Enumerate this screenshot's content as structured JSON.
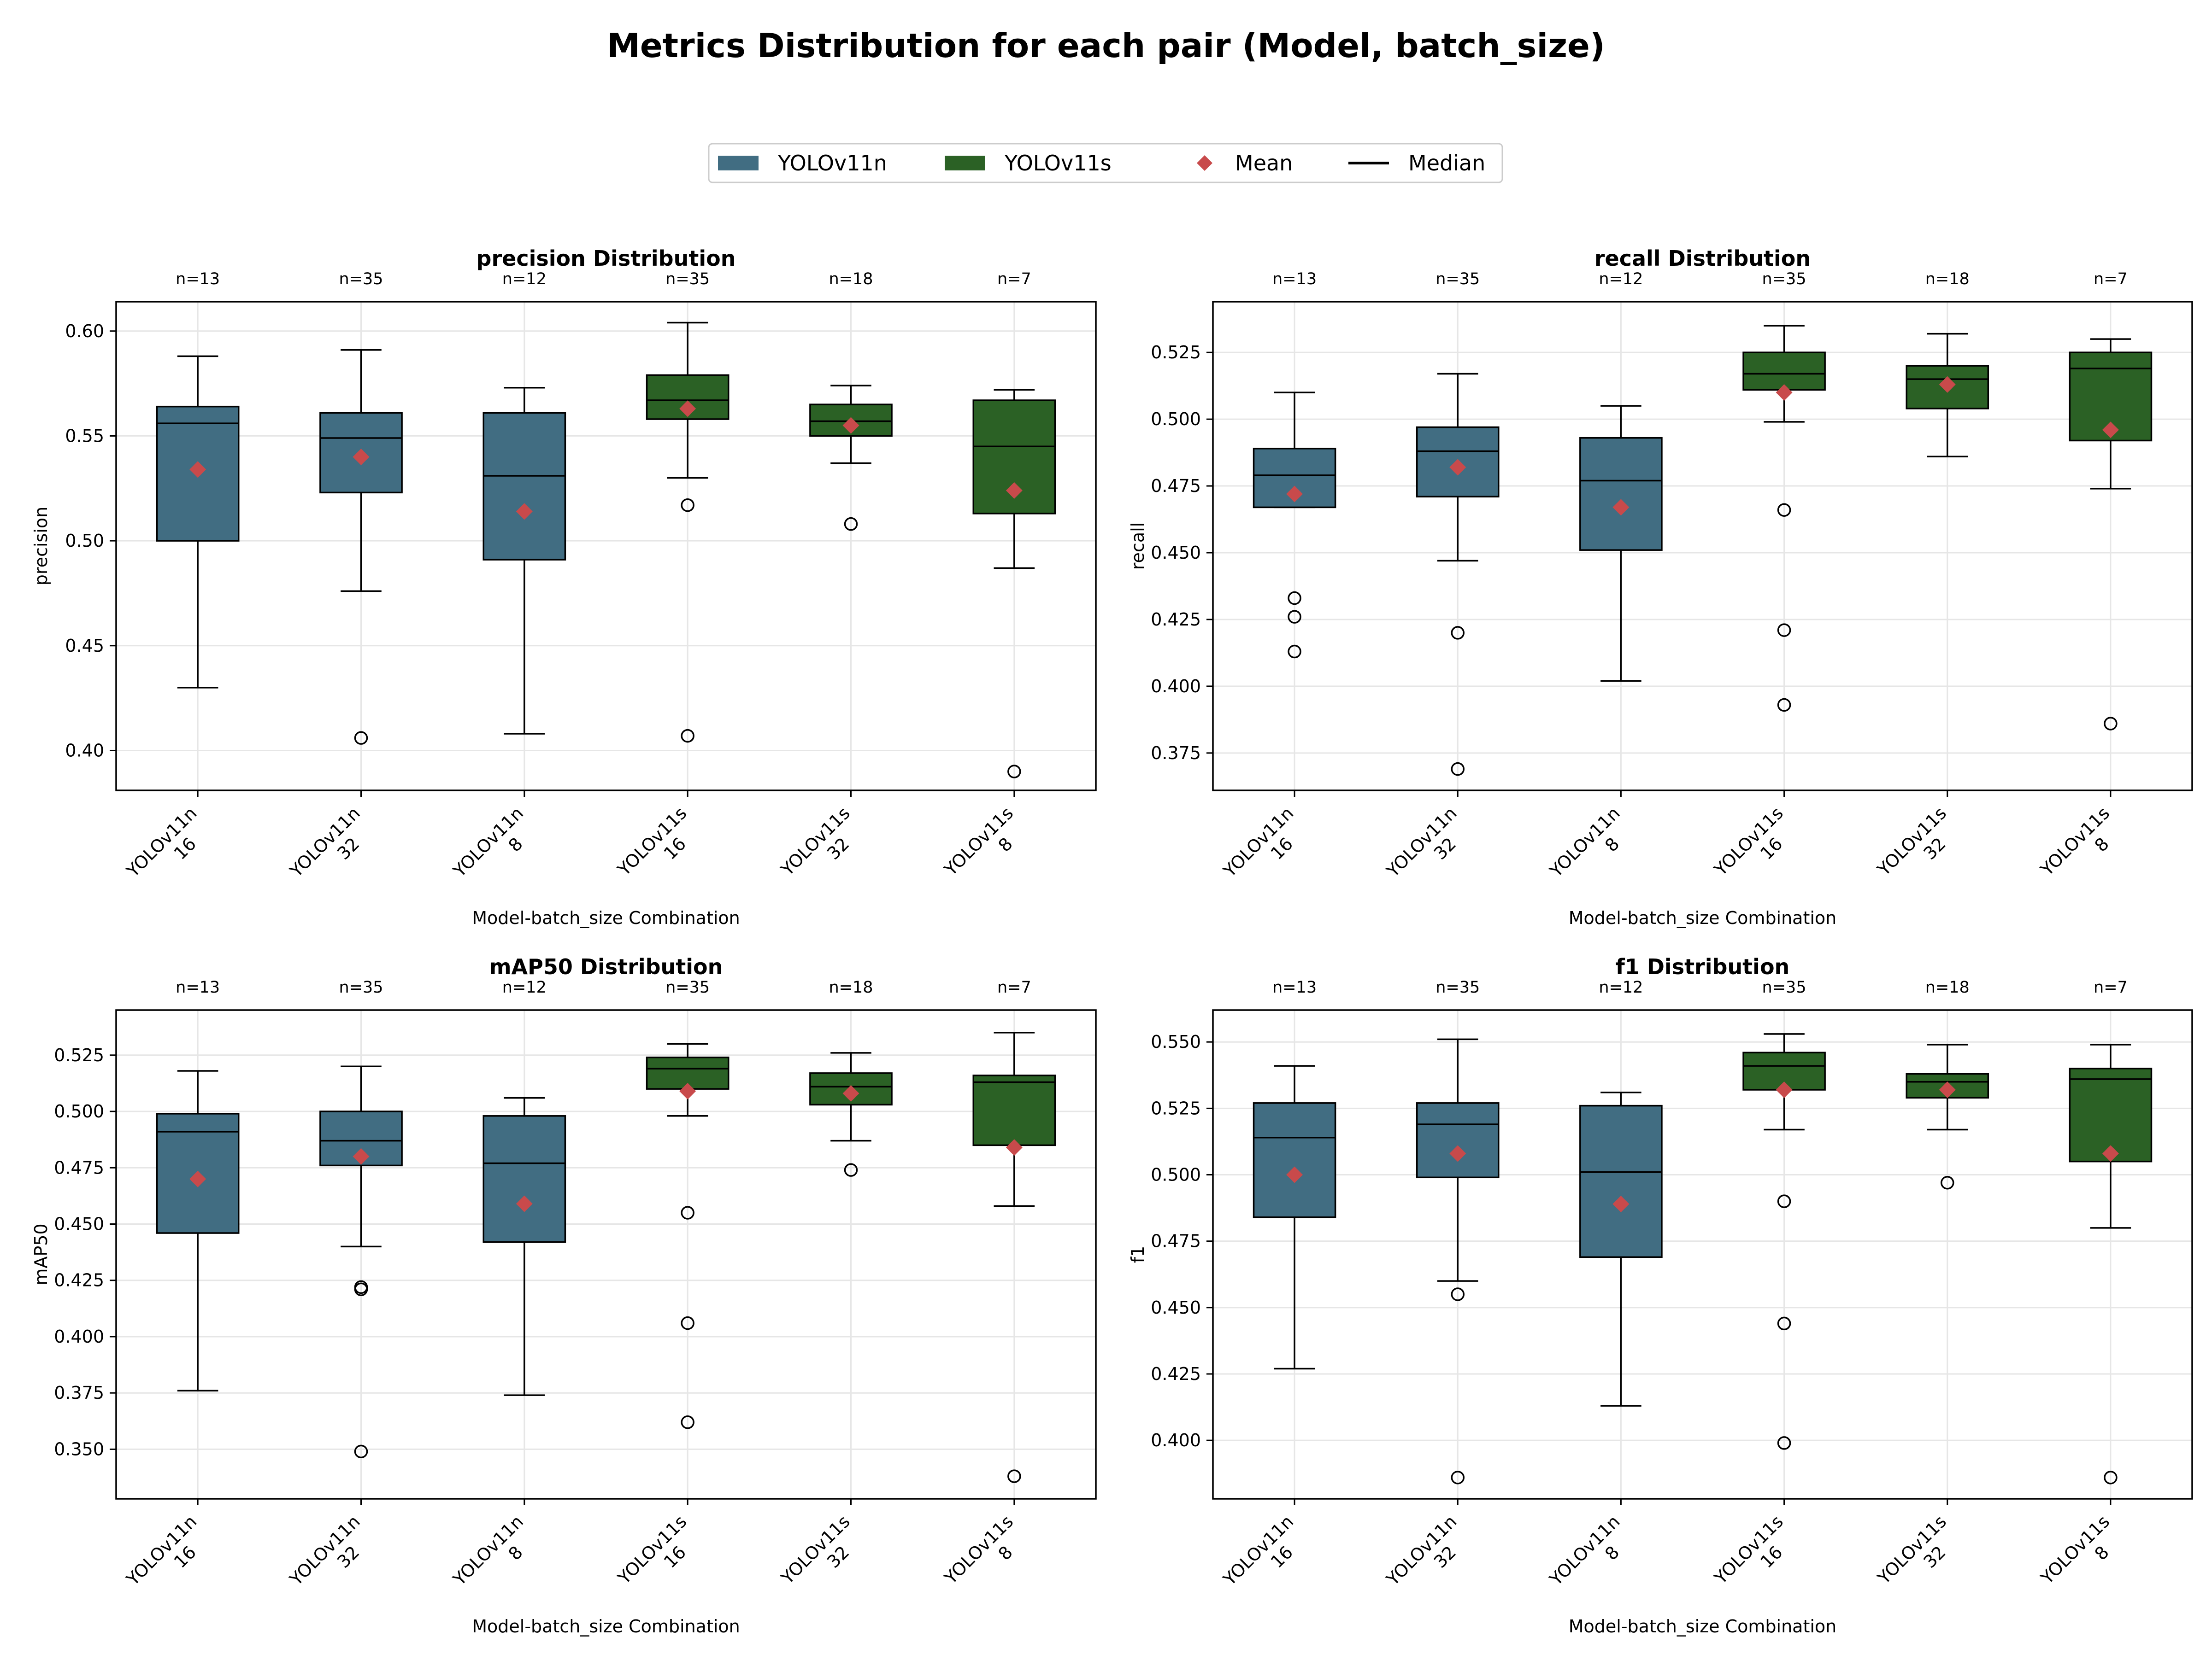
{
  "figure_title": "Metrics Distribution for each pair (Model, batch_size)",
  "legend": {
    "items": [
      {
        "label": "YOLOv11n",
        "kind": "patch",
        "color": "#416d82"
      },
      {
        "label": "YOLOv11s",
        "kind": "patch",
        "color": "#2b6125"
      },
      {
        "label": "Mean",
        "kind": "diamond",
        "color": "#c84a4b"
      },
      {
        "label": "Median",
        "kind": "line",
        "color": "#000000"
      }
    ]
  },
  "colors": {
    "YOLOv11n": "#416d82",
    "YOLOv11s": "#2b6125",
    "mean": "#c84a4b",
    "median": "#000000",
    "grid": "#e6e6e6"
  },
  "chart_data": [
    {
      "type": "box",
      "title": "precision Distribution",
      "xlabel": "Model-batch_size Combination",
      "ylabel": "precision",
      "ylim": [
        0.381,
        0.614
      ],
      "yticks": [
        "0.40",
        "0.45",
        "0.50",
        "0.55",
        "0.60"
      ],
      "grid": true,
      "categories": [
        {
          "model": "YOLOv11n",
          "batch": "16",
          "n": "n=13",
          "whislo": 0.43,
          "q1": 0.5,
          "median": 0.556,
          "q3": 0.564,
          "whishi": 0.588,
          "mean": 0.534,
          "fliers": []
        },
        {
          "model": "YOLOv11n",
          "batch": "32",
          "n": "n=35",
          "whislo": 0.476,
          "q1": 0.523,
          "median": 0.549,
          "q3": 0.561,
          "whishi": 0.591,
          "mean": 0.54,
          "fliers": [
            0.406
          ]
        },
        {
          "model": "YOLOv11n",
          "batch": "8",
          "n": "n=12",
          "whislo": 0.408,
          "q1": 0.491,
          "median": 0.531,
          "q3": 0.561,
          "whishi": 0.573,
          "mean": 0.514,
          "fliers": []
        },
        {
          "model": "YOLOv11s",
          "batch": "16",
          "n": "n=35",
          "whislo": 0.53,
          "q1": 0.558,
          "median": 0.567,
          "q3": 0.579,
          "whishi": 0.604,
          "mean": 0.563,
          "fliers": [
            0.517,
            0.407
          ]
        },
        {
          "model": "YOLOv11s",
          "batch": "32",
          "n": "n=18",
          "whislo": 0.537,
          "q1": 0.55,
          "median": 0.557,
          "q3": 0.565,
          "whishi": 0.574,
          "mean": 0.555,
          "fliers": [
            0.508
          ]
        },
        {
          "model": "YOLOv11s",
          "batch": "8",
          "n": "n=7",
          "whislo": 0.487,
          "q1": 0.513,
          "median": 0.545,
          "q3": 0.567,
          "whishi": 0.572,
          "mean": 0.524,
          "fliers": [
            0.39
          ]
        }
      ]
    },
    {
      "type": "box",
      "title": "recall Distribution",
      "xlabel": "Model-batch_size Combination",
      "ylabel": "recall",
      "ylim": [
        0.361,
        0.544
      ],
      "yticks": [
        "0.375",
        "0.400",
        "0.425",
        "0.450",
        "0.475",
        "0.500",
        "0.525"
      ],
      "grid": true,
      "categories": [
        {
          "model": "YOLOv11n",
          "batch": "16",
          "n": "n=13",
          "whislo": 0.467,
          "q1": 0.467,
          "median": 0.479,
          "q3": 0.489,
          "whishi": 0.51,
          "mean": 0.472,
          "fliers": [
            0.433,
            0.426,
            0.413
          ]
        },
        {
          "model": "YOLOv11n",
          "batch": "32",
          "n": "n=35",
          "whislo": 0.447,
          "q1": 0.471,
          "median": 0.488,
          "q3": 0.497,
          "whishi": 0.517,
          "mean": 0.482,
          "fliers": [
            0.42,
            0.369
          ]
        },
        {
          "model": "YOLOv11n",
          "batch": "8",
          "n": "n=12",
          "whislo": 0.402,
          "q1": 0.451,
          "median": 0.477,
          "q3": 0.493,
          "whishi": 0.505,
          "mean": 0.467,
          "fliers": []
        },
        {
          "model": "YOLOv11s",
          "batch": "16",
          "n": "n=35",
          "whislo": 0.499,
          "q1": 0.511,
          "median": 0.517,
          "q3": 0.525,
          "whishi": 0.535,
          "mean": 0.51,
          "fliers": [
            0.466,
            0.421,
            0.393
          ]
        },
        {
          "model": "YOLOv11s",
          "batch": "32",
          "n": "n=18",
          "whislo": 0.486,
          "q1": 0.504,
          "median": 0.515,
          "q3": 0.52,
          "whishi": 0.532,
          "mean": 0.513,
          "fliers": []
        },
        {
          "model": "YOLOv11s",
          "batch": "8",
          "n": "n=7",
          "whislo": 0.474,
          "q1": 0.492,
          "median": 0.519,
          "q3": 0.525,
          "whishi": 0.53,
          "mean": 0.496,
          "fliers": [
            0.386
          ]
        }
      ]
    },
    {
      "type": "box",
      "title": "mAP50 Distribution",
      "xlabel": "Model-batch_size Combination",
      "ylabel": "mAP50",
      "ylim": [
        0.328,
        0.545
      ],
      "yticks": [
        "0.350",
        "0.375",
        "0.400",
        "0.425",
        "0.450",
        "0.475",
        "0.500",
        "0.525"
      ],
      "grid": true,
      "categories": [
        {
          "model": "YOLOv11n",
          "batch": "16",
          "n": "n=13",
          "whislo": 0.376,
          "q1": 0.446,
          "median": 0.491,
          "q3": 0.499,
          "whishi": 0.518,
          "mean": 0.47,
          "fliers": []
        },
        {
          "model": "YOLOv11n",
          "batch": "32",
          "n": "n=35",
          "whislo": 0.44,
          "q1": 0.476,
          "median": 0.487,
          "q3": 0.5,
          "whishi": 0.52,
          "mean": 0.48,
          "fliers": [
            0.422,
            0.421,
            0.349
          ]
        },
        {
          "model": "YOLOv11n",
          "batch": "8",
          "n": "n=12",
          "whislo": 0.374,
          "q1": 0.442,
          "median": 0.477,
          "q3": 0.498,
          "whishi": 0.506,
          "mean": 0.459,
          "fliers": []
        },
        {
          "model": "YOLOv11s",
          "batch": "16",
          "n": "n=35",
          "whislo": 0.498,
          "q1": 0.51,
          "median": 0.519,
          "q3": 0.524,
          "whishi": 0.53,
          "mean": 0.509,
          "fliers": [
            0.455,
            0.406,
            0.362
          ]
        },
        {
          "model": "YOLOv11s",
          "batch": "32",
          "n": "n=18",
          "whislo": 0.487,
          "q1": 0.503,
          "median": 0.511,
          "q3": 0.517,
          "whishi": 0.526,
          "mean": 0.508,
          "fliers": [
            0.474
          ]
        },
        {
          "model": "YOLOv11s",
          "batch": "8",
          "n": "n=7",
          "whislo": 0.458,
          "q1": 0.485,
          "median": 0.513,
          "q3": 0.516,
          "whishi": 0.535,
          "mean": 0.484,
          "fliers": [
            0.338
          ]
        }
      ]
    },
    {
      "type": "box",
      "title": "f1 Distribution",
      "xlabel": "Model-batch_size Combination",
      "ylabel": "f1",
      "ylim": [
        0.378,
        0.562
      ],
      "yticks": [
        "0.400",
        "0.425",
        "0.450",
        "0.475",
        "0.500",
        "0.525",
        "0.550"
      ],
      "grid": true,
      "categories": [
        {
          "model": "YOLOv11n",
          "batch": "16",
          "n": "n=13",
          "whislo": 0.427,
          "q1": 0.484,
          "median": 0.514,
          "q3": 0.527,
          "whishi": 0.541,
          "mean": 0.5,
          "fliers": []
        },
        {
          "model": "YOLOv11n",
          "batch": "32",
          "n": "n=35",
          "whislo": 0.46,
          "q1": 0.499,
          "median": 0.519,
          "q3": 0.527,
          "whishi": 0.551,
          "mean": 0.508,
          "fliers": [
            0.455,
            0.386
          ]
        },
        {
          "model": "YOLOv11n",
          "batch": "8",
          "n": "n=12",
          "whislo": 0.413,
          "q1": 0.469,
          "median": 0.501,
          "q3": 0.526,
          "whishi": 0.531,
          "mean": 0.489,
          "fliers": []
        },
        {
          "model": "YOLOv11s",
          "batch": "16",
          "n": "n=35",
          "whislo": 0.517,
          "q1": 0.532,
          "median": 0.541,
          "q3": 0.546,
          "whishi": 0.553,
          "mean": 0.532,
          "fliers": [
            0.49,
            0.444,
            0.399
          ]
        },
        {
          "model": "YOLOv11s",
          "batch": "32",
          "n": "n=18",
          "whislo": 0.517,
          "q1": 0.529,
          "median": 0.535,
          "q3": 0.538,
          "whishi": 0.549,
          "mean": 0.532,
          "fliers": [
            0.497
          ]
        },
        {
          "model": "YOLOv11s",
          "batch": "8",
          "n": "n=7",
          "whislo": 0.48,
          "q1": 0.505,
          "median": 0.536,
          "q3": 0.54,
          "whishi": 0.549,
          "mean": 0.508,
          "fliers": [
            0.386
          ]
        }
      ]
    }
  ]
}
